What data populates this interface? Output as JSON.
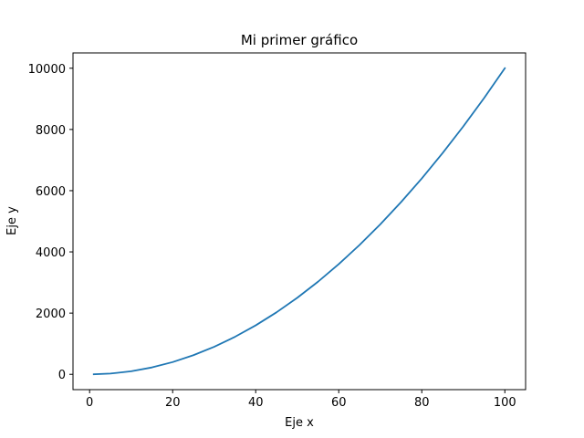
{
  "chart_data": {
    "type": "line",
    "title": "Mi primer gráfico",
    "xlabel": "Eje x",
    "ylabel": "Eje y",
    "xlim": [
      -4,
      105
    ],
    "ylim": [
      -500,
      10500
    ],
    "xticks": [
      0,
      20,
      40,
      60,
      80,
      100
    ],
    "yticks": [
      0,
      2000,
      4000,
      6000,
      8000,
      10000
    ],
    "grid": false,
    "legend": "none",
    "series": [
      {
        "color": "#1f77b4",
        "x": [
          1,
          5,
          10,
          15,
          20,
          25,
          30,
          35,
          40,
          45,
          50,
          55,
          60,
          65,
          70,
          75,
          80,
          85,
          90,
          95,
          100
        ],
        "y": [
          1,
          25,
          100,
          225,
          400,
          625,
          900,
          1225,
          1600,
          2025,
          2500,
          3025,
          3600,
          4225,
          4900,
          5625,
          6400,
          7225,
          8100,
          9025,
          10000
        ]
      }
    ]
  }
}
